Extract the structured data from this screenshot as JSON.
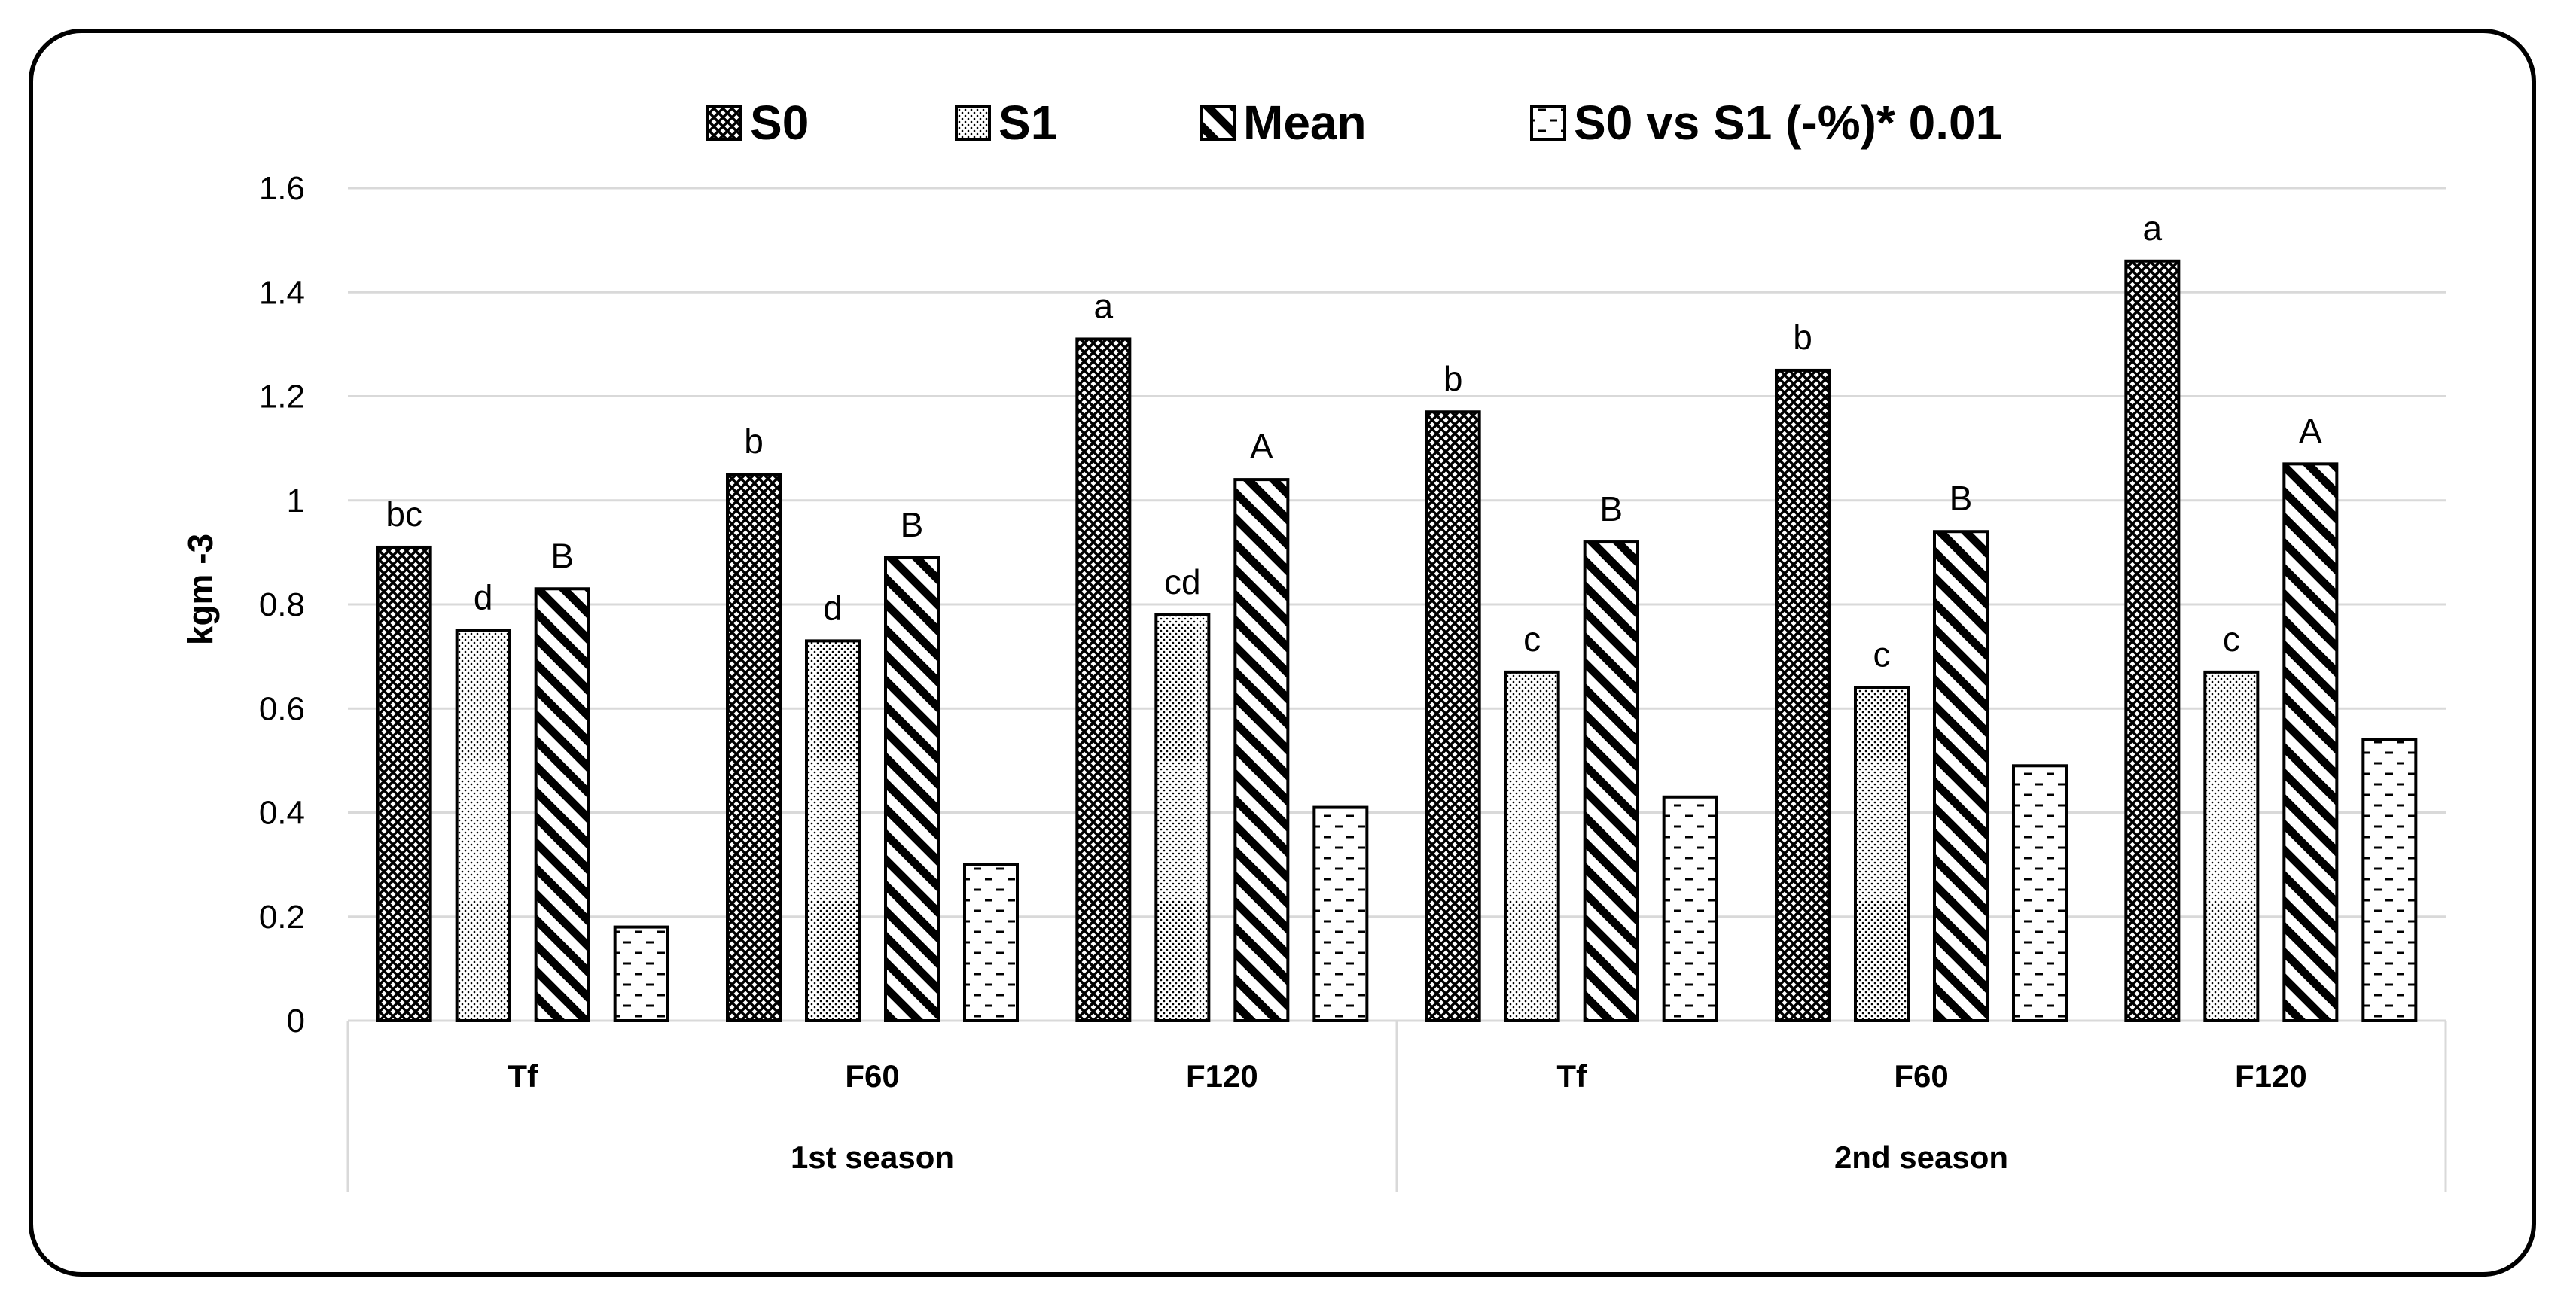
{
  "chart_data": {
    "type": "bar",
    "ylabel": "kgm -3",
    "ylim": [
      0,
      1.6
    ],
    "yticks": [
      "0",
      "0.2",
      "0.4",
      "0.6",
      "0.8",
      "1",
      "1.2",
      "1.4",
      "1.6"
    ],
    "grid": true,
    "legend_position": "top",
    "groups": [
      "1st season",
      "2nd season"
    ],
    "categories": [
      "Tf",
      "F60",
      "F120",
      "Tf",
      "F60",
      "F120"
    ],
    "series": [
      {
        "name": "S0",
        "pattern": "crosshatch",
        "values": [
          0.91,
          1.05,
          1.31,
          1.17,
          1.25,
          1.46
        ],
        "labels": [
          "bc",
          "b",
          "a",
          "b",
          "b",
          "a"
        ]
      },
      {
        "name": "S1",
        "pattern": "dots",
        "values": [
          0.75,
          0.73,
          0.78,
          0.67,
          0.64,
          0.67
        ],
        "labels": [
          "d",
          "d",
          "cd",
          "c",
          "c",
          "c"
        ]
      },
      {
        "name": "Mean",
        "pattern": "diagonal",
        "values": [
          0.83,
          0.89,
          1.04,
          0.92,
          0.94,
          1.07
        ],
        "labels": [
          "B",
          "B",
          "A",
          "B",
          "B",
          "A"
        ]
      },
      {
        "name": "S0 vs S1 (-%)* 0.01",
        "pattern": "dashes",
        "values": [
          0.18,
          0.3,
          0.41,
          0.43,
          0.49,
          0.54
        ],
        "labels": [
          "",
          "",
          "",
          "",
          "",
          ""
        ]
      }
    ]
  }
}
